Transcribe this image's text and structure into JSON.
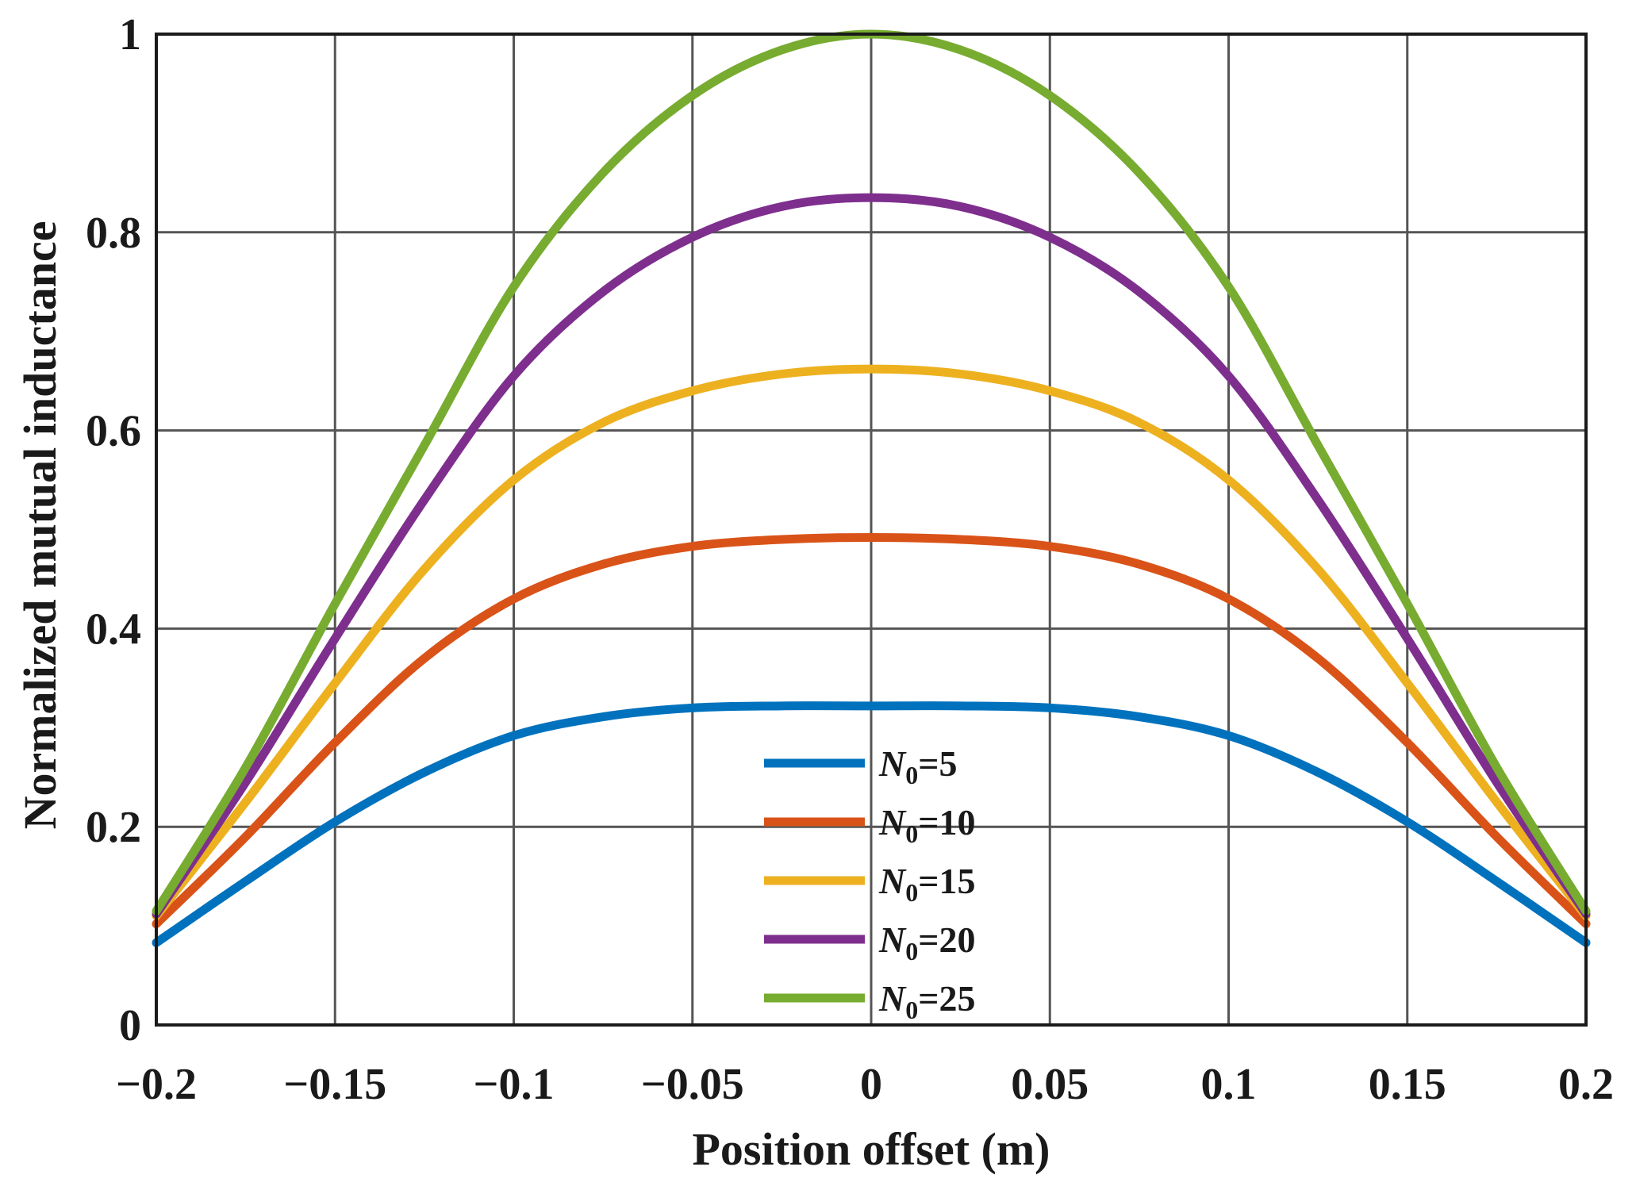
{
  "chart_data": {
    "type": "line",
    "title": "",
    "xlabel": "Position offset (m)",
    "ylabel": "Normalized mutual inductance",
    "xlim": [
      -0.2,
      0.2
    ],
    "ylim": [
      0,
      1
    ],
    "grid": true,
    "legend_position": "bottom-center",
    "x_ticks": [
      -0.2,
      -0.15,
      -0.1,
      -0.05,
      0,
      0.05,
      0.1,
      0.15,
      0.2
    ],
    "x_tick_labels": [
      "−0.2",
      "−0.15",
      "−0.1",
      "−0.05",
      "0",
      "0.05",
      "0.1",
      "0.15",
      "0.2"
    ],
    "y_ticks": [
      0,
      0.2,
      0.4,
      0.6,
      0.8,
      1
    ],
    "y_tick_labels": [
      "0",
      "0.2",
      "0.4",
      "0.6",
      "0.8",
      "1"
    ],
    "x": [
      -0.2,
      -0.175,
      -0.15,
      -0.125,
      -0.1,
      -0.075,
      -0.05,
      -0.025,
      0,
      0.025,
      0.05,
      0.075,
      0.1,
      0.125,
      0.15,
      0.175,
      0.2
    ],
    "series": [
      {
        "name": "N0=5",
        "label_var": "N",
        "label_sub": "0",
        "label_val": "=5",
        "color": "#0072BD",
        "values": [
          0.083,
          0.145,
          0.205,
          0.255,
          0.292,
          0.311,
          0.32,
          0.322,
          0.322,
          0.322,
          0.32,
          0.311,
          0.292,
          0.255,
          0.205,
          0.145,
          0.083
        ]
      },
      {
        "name": "N0=10",
        "label_var": "N",
        "label_sub": "0",
        "label_val": "=10",
        "color": "#D95319",
        "values": [
          0.102,
          0.19,
          0.285,
          0.37,
          0.43,
          0.465,
          0.483,
          0.49,
          0.492,
          0.49,
          0.483,
          0.465,
          0.43,
          0.37,
          0.285,
          0.19,
          0.102
        ]
      },
      {
        "name": "N0=15",
        "label_var": "N",
        "label_sub": "0",
        "label_val": "=15",
        "color": "#EDB120",
        "values": [
          0.11,
          0.225,
          0.345,
          0.46,
          0.55,
          0.608,
          0.64,
          0.657,
          0.662,
          0.657,
          0.64,
          0.608,
          0.55,
          0.46,
          0.345,
          0.225,
          0.11
        ]
      },
      {
        "name": "N0=20",
        "label_var": "N",
        "label_sub": "0",
        "label_val": "=20",
        "color": "#7E2F8E",
        "values": [
          0.112,
          0.245,
          0.39,
          0.53,
          0.655,
          0.74,
          0.795,
          0.826,
          0.835,
          0.826,
          0.795,
          0.74,
          0.655,
          0.53,
          0.39,
          0.245,
          0.112
        ]
      },
      {
        "name": "N0=25",
        "label_var": "N",
        "label_sub": "0",
        "label_val": "=25",
        "color": "#77AC30",
        "values": [
          0.115,
          0.26,
          0.425,
          0.585,
          0.745,
          0.86,
          0.938,
          0.984,
          1.0,
          0.984,
          0.938,
          0.86,
          0.745,
          0.585,
          0.425,
          0.26,
          0.115
        ]
      }
    ]
  }
}
